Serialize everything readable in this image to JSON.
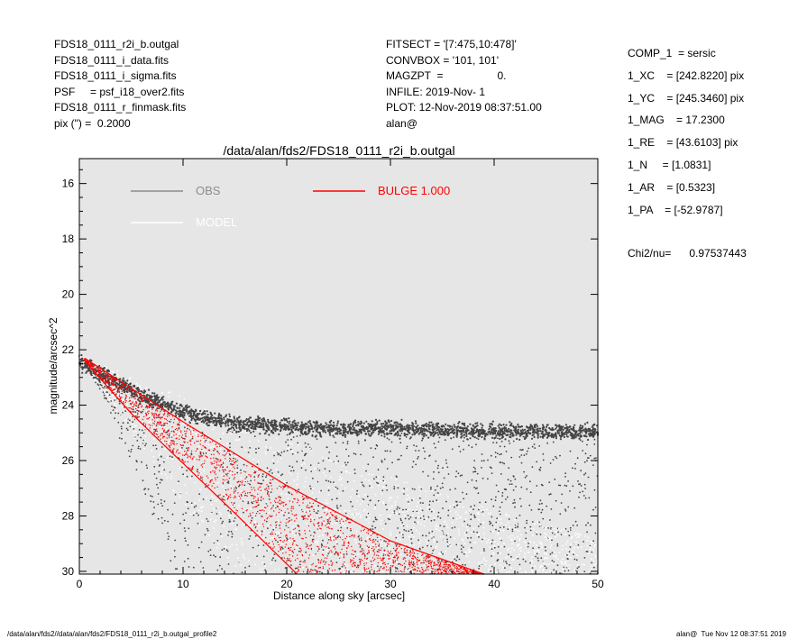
{
  "header": {
    "left": [
      "FDS18_0111_r2i_b.outgal",
      "FDS18_0111_i_data.fits",
      "FDS18_0111_i_sigma.fits",
      "PSF     = psf_i18_over2.fits",
      "FDS18_0111_r_finmask.fits",
      "pix (\") =  0.2000"
    ],
    "middle": [
      "FITSECT = '[7:475,10:478]'",
      "CONVBOX = '101, 101'",
      "MAGZPT  =                  0.",
      "INFILE: 2019-Nov- 1",
      "PLOT: 12-Nov-2019 08:37:51.00",
      "alan@"
    ],
    "right": [
      "COMP_1  = sersic",
      "1_XC    = [242.8220] pix",
      "1_YC    = [245.3460] pix",
      "1_MAG    = 17.2300",
      "1_RE    = [43.6103] pix",
      "1_N     = [1.0831]",
      "1_AR    = [0.5323]",
      "1_PA    = [-52.9787]"
    ],
    "chi2": "Chi2/nu=      0.97537443"
  },
  "footer": {
    "left": "/data/alan/fds2//data/alan/fds2/FDS18_0111_r2i_b.outgal_profile2",
    "right": "alan@  Tue Nov 12 08:37:51 2019"
  },
  "chart_data": {
    "type": "scatter",
    "title": "/data/alan/fds2/FDS18_0111_r2i_b.outgal",
    "xlabel": "Distance along sky [arcsec]",
    "ylabel": "magnitude/arcsec^2",
    "xlim": [
      0,
      50
    ],
    "ylim": [
      30.1,
      15.1
    ],
    "xticks": [
      0,
      10,
      20,
      30,
      40,
      50
    ],
    "yticks": [
      16,
      18,
      20,
      22,
      24,
      26,
      28,
      30
    ],
    "y_inverted": true,
    "grid": false,
    "legend": [
      {
        "label": "OBS",
        "color": "#8c8c8c"
      },
      {
        "label": "MODEL",
        "color": "#ffffff"
      },
      {
        "label": "BULGE  1.000",
        "color": "#ff0000"
      }
    ],
    "colors": {
      "background": "#e6e6e6",
      "obs": "#444444",
      "model": "#ffffff",
      "bulge": "#ff0000"
    },
    "series": [
      {
        "name": "OBS",
        "upper_envelope": [
          [
            0,
            22.1
          ],
          [
            2,
            22.5
          ],
          [
            4,
            22.9
          ],
          [
            6,
            23.3
          ],
          [
            8,
            23.6
          ],
          [
            10,
            23.9
          ],
          [
            12,
            24.1
          ],
          [
            14,
            24.25
          ],
          [
            16,
            24.35
          ],
          [
            18,
            24.4
          ],
          [
            20,
            24.45
          ],
          [
            25,
            24.5
          ],
          [
            30,
            24.5
          ],
          [
            35,
            24.55
          ],
          [
            40,
            24.6
          ],
          [
            45,
            24.6
          ],
          [
            50,
            24.65
          ]
        ],
        "lower_envelope": [
          [
            0,
            22.2
          ],
          [
            2,
            23.5
          ],
          [
            4,
            25.3
          ],
          [
            6,
            27.0
          ],
          [
            8,
            28.8
          ],
          [
            9,
            30.1
          ]
        ]
      },
      {
        "name": "MODEL",
        "upper_envelope": [
          [
            0,
            22.2
          ],
          [
            20,
            25.2
          ],
          [
            30,
            26.6
          ],
          [
            40,
            27.8
          ],
          [
            50,
            28.8
          ]
        ],
        "lower_envelope": [
          [
            0,
            22.3
          ],
          [
            5,
            25.0
          ],
          [
            10,
            27.6
          ],
          [
            14,
            29.5
          ],
          [
            15,
            30.1
          ]
        ]
      },
      {
        "name": "BULGE  1.000",
        "upper_envelope": [
          [
            0.5,
            22.3
          ],
          [
            10,
            24.6
          ],
          [
            20,
            26.9
          ],
          [
            30,
            28.9
          ],
          [
            39,
            30.1
          ]
        ],
        "lower_envelope": [
          [
            0.5,
            22.4
          ],
          [
            5,
            24.3
          ],
          [
            10,
            26.1
          ],
          [
            15,
            27.9
          ],
          [
            21,
            30.1
          ]
        ]
      }
    ]
  }
}
